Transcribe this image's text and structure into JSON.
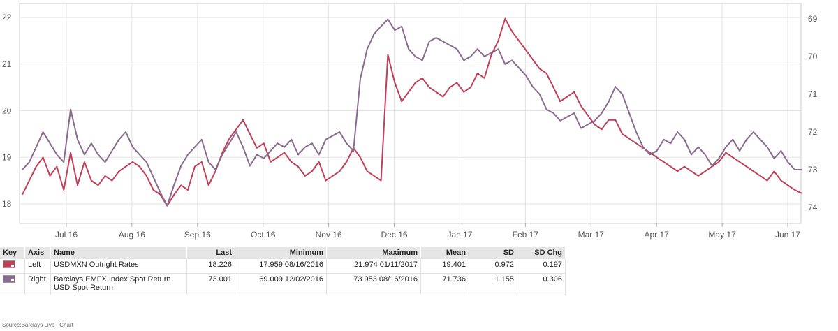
{
  "chart_data": {
    "type": "line",
    "x_labels": [
      "Jul 16",
      "Aug 16",
      "Sep 16",
      "Oct 16",
      "Nov 16",
      "Dec 16",
      "Jan 17",
      "Feb 17",
      "Mar 17",
      "Apr 17",
      "May 17",
      "Jun 17"
    ],
    "y_left": {
      "ticks": [
        "22",
        "21",
        "20",
        "19",
        "18"
      ],
      "range": [
        18,
        22
      ]
    },
    "y_right": {
      "ticks": [
        "69",
        "70",
        "71",
        "72",
        "73",
        "74"
      ],
      "range": [
        69,
        74
      ],
      "inverted": true
    },
    "grid": true,
    "series": [
      {
        "name": "USDMXN Outright Rates",
        "axis": "Left",
        "color": "#c0405a",
        "values": [
          18.2,
          18.5,
          18.8,
          19.0,
          18.6,
          18.8,
          18.3,
          19.1,
          18.4,
          18.9,
          18.5,
          18.4,
          18.6,
          18.5,
          18.7,
          18.8,
          18.9,
          18.8,
          18.6,
          18.3,
          18.2,
          17.96,
          18.2,
          18.4,
          18.3,
          18.8,
          18.9,
          18.4,
          18.7,
          19.1,
          19.4,
          19.6,
          19.8,
          19.5,
          19.2,
          19.3,
          18.9,
          19.0,
          19.1,
          18.9,
          18.8,
          18.6,
          18.7,
          18.9,
          18.5,
          18.6,
          18.7,
          18.9,
          19.2,
          19.0,
          18.7,
          18.6,
          18.5,
          21.2,
          20.6,
          20.2,
          20.4,
          20.6,
          20.7,
          20.5,
          20.4,
          20.3,
          20.5,
          20.6,
          20.4,
          20.5,
          20.8,
          20.7,
          21.2,
          21.5,
          21.974,
          21.7,
          21.5,
          21.3,
          21.1,
          20.9,
          20.8,
          20.5,
          20.2,
          20.3,
          20.4,
          20.1,
          19.9,
          19.7,
          19.6,
          19.8,
          19.8,
          19.5,
          19.4,
          19.3,
          19.2,
          19.1,
          19.0,
          18.9,
          18.8,
          18.7,
          18.8,
          18.7,
          18.6,
          18.7,
          18.8,
          18.9,
          19.1,
          19.0,
          18.9,
          18.8,
          18.7,
          18.6,
          18.5,
          18.7,
          18.5,
          18.4,
          18.3,
          18.226
        ]
      },
      {
        "name": "Barclays EMFX Index Spot Return USD Spot Return",
        "axis": "Right",
        "color": "#8a6a8e",
        "values": [
          73.0,
          72.8,
          72.4,
          72.0,
          72.3,
          72.6,
          72.8,
          71.4,
          72.2,
          72.6,
          72.3,
          72.6,
          72.8,
          72.5,
          72.2,
          72.0,
          72.4,
          72.6,
          72.8,
          73.2,
          73.6,
          73.953,
          73.4,
          72.9,
          72.6,
          72.4,
          72.2,
          72.8,
          73.0,
          72.6,
          72.3,
          72.0,
          72.4,
          72.9,
          72.6,
          72.7,
          72.5,
          72.3,
          72.4,
          72.2,
          72.6,
          72.4,
          72.3,
          72.6,
          72.2,
          72.1,
          72.0,
          72.3,
          72.5,
          70.6,
          69.8,
          69.4,
          69.2,
          69.009,
          69.3,
          69.2,
          69.8,
          70.0,
          70.1,
          69.6,
          69.5,
          69.6,
          69.7,
          69.8,
          70.1,
          70.0,
          69.8,
          70.0,
          69.9,
          69.8,
          70.2,
          70.1,
          70.3,
          70.5,
          70.8,
          71.0,
          71.4,
          71.5,
          71.7,
          71.6,
          71.5,
          71.9,
          71.8,
          71.7,
          71.5,
          71.2,
          70.8,
          71.0,
          71.5,
          72.0,
          72.4,
          72.6,
          72.5,
          72.2,
          72.3,
          72.0,
          72.2,
          72.6,
          72.4,
          72.6,
          72.9,
          72.7,
          72.4,
          72.2,
          72.5,
          72.2,
          72.0,
          72.2,
          72.4,
          72.7,
          72.5,
          72.8,
          73.0,
          73.001
        ]
      }
    ]
  },
  "table": {
    "headers": {
      "key": "Key",
      "axis": "Axis",
      "name": "Name",
      "last": "Last",
      "min": "Minimum",
      "max": "Maximum",
      "mean": "Mean",
      "sd": "SD",
      "sdchg": "SD Chg"
    },
    "rows": [
      {
        "axis": "Left",
        "name": "USDMXN Outright Rates",
        "last": "18.226",
        "min": "17.959 08/16/2016",
        "max": "21.974 01/11/2017",
        "mean": "19.401",
        "sd": "0.972",
        "sdchg": "0.197",
        "color": "#c0405a"
      },
      {
        "axis": "Right",
        "name": "Barclays EMFX Index Spot Return USD Spot Return",
        "last": "73.001",
        "min": "69.009 12/02/2016",
        "max": "73.953 08/16/2016",
        "mean": "71.736",
        "sd": "1.155",
        "sdchg": "0.306",
        "color": "#8a6a8e"
      }
    ]
  },
  "source": "Source:Barclays Live - Chart"
}
